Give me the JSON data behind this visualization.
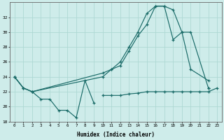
{
  "xlabel": "Humidex (Indice chaleur)",
  "background_color": "#ceecea",
  "grid_color": "#aed8d4",
  "line_color": "#1a6b68",
  "ylim": [
    18,
    34
  ],
  "xlim": [
    -0.5,
    23.5
  ],
  "yticks": [
    18,
    20,
    22,
    24,
    26,
    28,
    30,
    32
  ],
  "xticks": [
    0,
    1,
    2,
    3,
    4,
    5,
    6,
    7,
    8,
    9,
    10,
    11,
    12,
    13,
    14,
    15,
    16,
    17,
    18,
    19,
    20,
    21,
    22,
    23
  ],
  "series": [
    {
      "segments": [
        {
          "x": [
            0,
            1,
            2,
            3,
            4,
            5,
            6,
            7,
            8,
            9
          ],
          "y": [
            24,
            22.5,
            22,
            21,
            21,
            19.5,
            19.5,
            18.5,
            23.5,
            20.5
          ]
        },
        {
          "x": [
            22
          ],
          "y": [
            22.5
          ]
        }
      ]
    },
    {
      "segments": [
        {
          "x": [
            10,
            11,
            12,
            13,
            14,
            15,
            16,
            17,
            18,
            19,
            20,
            21,
            22,
            23
          ],
          "y": [
            21.5,
            21.5,
            21.5,
            21.7,
            21.8,
            22,
            22,
            22,
            22,
            22,
            22,
            22,
            22,
            22.5
          ]
        }
      ]
    },
    {
      "segments": [
        {
          "x": [
            0,
            1,
            2,
            10,
            11,
            12,
            13,
            14,
            15,
            16,
            17,
            18,
            19,
            20,
            22
          ],
          "y": [
            24,
            22.5,
            22,
            24.5,
            25,
            25.5,
            27.5,
            29.5,
            31,
            33.5,
            33.5,
            33,
            30,
            25,
            23.5
          ]
        }
      ]
    },
    {
      "segments": [
        {
          "x": [
            0,
            1,
            2,
            10,
            11,
            12,
            13,
            14,
            15,
            16,
            17,
            18,
            19,
            20,
            22
          ],
          "y": [
            24,
            22.5,
            22,
            24,
            25,
            26,
            28,
            30,
            32.5,
            33.5,
            33.5,
            29,
            30,
            30,
            22.5
          ]
        }
      ]
    }
  ]
}
